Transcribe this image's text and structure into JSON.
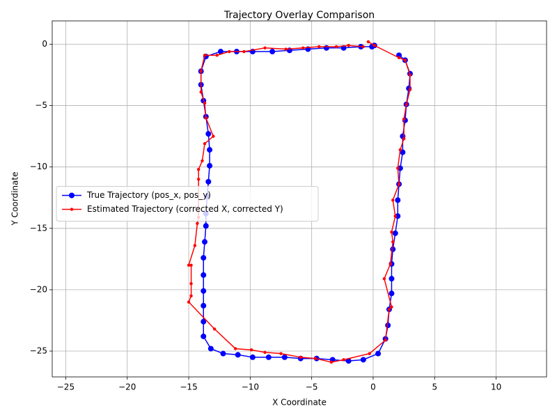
{
  "chart_data": {
    "type": "line",
    "title": "Trajectory Overlay Comparison",
    "xlabel": "X Coordinate",
    "ylabel": "Y Coordinate",
    "xlim": [
      -26.1,
      14.1
    ],
    "ylim": [
      -27.1,
      1.9
    ],
    "xticks": [
      {
        "value": -25,
        "label": "−25"
      },
      {
        "value": -20,
        "label": "−20"
      },
      {
        "value": -15,
        "label": "−15"
      },
      {
        "value": -10,
        "label": "−10"
      },
      {
        "value": -5,
        "label": "−5"
      },
      0,
      5,
      10
    ],
    "yticks": [
      {
        "value": -25,
        "label": "−25"
      },
      {
        "value": -20,
        "label": "−20"
      },
      {
        "value": -15,
        "label": "−15"
      },
      {
        "value": -10,
        "label": "−10"
      },
      {
        "value": -5,
        "label": "−5"
      },
      0
    ],
    "grid": true,
    "legend": "center left",
    "series": [
      {
        "name": "True Trajectory (pos_x, pos_y)",
        "color": "#0000ff",
        "marker": "large",
        "x": [
          0.1,
          -0.1,
          -1.0,
          -2.4,
          -3.8,
          -5.3,
          -6.8,
          -8.2,
          -9.8,
          -11.1,
          -12.4,
          -13.6,
          -14.0,
          -14.0,
          -13.8,
          -13.6,
          -13.4,
          -13.3,
          -13.3,
          -13.4,
          -13.5,
          -13.6,
          -13.6,
          -13.7,
          -13.8,
          -13.8,
          -13.8,
          -13.8,
          -13.8,
          -13.8,
          -13.2,
          -12.2,
          -11.0,
          -9.8,
          -8.5,
          -7.2,
          -5.9,
          -4.6,
          -3.3,
          -2.0,
          -0.8,
          0.4,
          1.0,
          1.2,
          1.3,
          1.5,
          1.5,
          1.5,
          1.6,
          1.8,
          2.0,
          2.0,
          2.1,
          2.2,
          2.4,
          2.4,
          2.6,
          2.7,
          2.9,
          3.0,
          2.6,
          2.1
        ],
        "y": [
          -0.1,
          -0.2,
          -0.2,
          -0.3,
          -0.3,
          -0.4,
          -0.5,
          -0.6,
          -0.6,
          -0.6,
          -0.6,
          -1.0,
          -2.2,
          -3.3,
          -4.6,
          -5.9,
          -7.3,
          -8.6,
          -9.9,
          -11.2,
          -12.4,
          -13.8,
          -14.8,
          -16.1,
          -17.4,
          -18.8,
          -20.1,
          -21.3,
          -22.6,
          -23.8,
          -24.8,
          -25.2,
          -25.3,
          -25.5,
          -25.5,
          -25.5,
          -25.6,
          -25.6,
          -25.7,
          -25.8,
          -25.7,
          -25.2,
          -24.0,
          -22.9,
          -21.6,
          -20.3,
          -19.1,
          -17.9,
          -16.7,
          -15.4,
          -14.0,
          -12.7,
          -11.4,
          -10.1,
          -8.8,
          -7.5,
          -6.2,
          -4.9,
          -3.6,
          -2.4,
          -1.3,
          -0.9
        ]
      },
      {
        "name": "Estimated Trajectory (corrected X, corrected Y)",
        "color": "#ff0000",
        "marker": "small",
        "x": [
          -0.4,
          0.1,
          2.1,
          2.6,
          3.0,
          3.0,
          2.7,
          2.5,
          2.5,
          2.2,
          2.0,
          2.1,
          1.6,
          1.8,
          1.5,
          1.6,
          1.4,
          0.9,
          1.5,
          1.3,
          1.0,
          -0.3,
          -2.4,
          -3.4,
          -4.7,
          -5.9,
          -7.5,
          -8.8,
          -9.9,
          -11.2,
          -12.9,
          -15.0,
          -14.8,
          -14.8,
          -14.8,
          -15.0,
          -14.5,
          -14.3,
          -14.2,
          -14.2,
          -14.2,
          -13.9,
          -13.7,
          -13.0,
          -13.6,
          -13.7,
          -14.0,
          -14.0,
          -13.7,
          -12.7,
          -11.7,
          -10.5,
          -8.8,
          -7.1,
          -5.7,
          -4.4,
          -3.0,
          -2.0,
          -0.8
        ],
        "y": [
          0.2,
          -0.1,
          -1.1,
          -1.3,
          -2.5,
          -3.7,
          -4.9,
          -6.1,
          -7.7,
          -8.6,
          -10.1,
          -11.4,
          -12.7,
          -14.0,
          -15.3,
          -16.1,
          -17.9,
          -19.1,
          -21.4,
          -21.6,
          -24.1,
          -25.2,
          -25.7,
          -25.9,
          -25.6,
          -25.5,
          -25.2,
          -25.1,
          -24.9,
          -24.8,
          -23.2,
          -21.0,
          -20.5,
          -19.5,
          -18.0,
          -18.0,
          -16.4,
          -14.6,
          -14.1,
          -11.0,
          -10.2,
          -9.5,
          -8.1,
          -7.5,
          -6.0,
          -4.8,
          -3.9,
          -2.2,
          -0.9,
          -0.9,
          -0.6,
          -0.6,
          -0.3,
          -0.4,
          -0.3,
          -0.2,
          -0.2,
          -0.1,
          -0.2
        ]
      }
    ]
  }
}
